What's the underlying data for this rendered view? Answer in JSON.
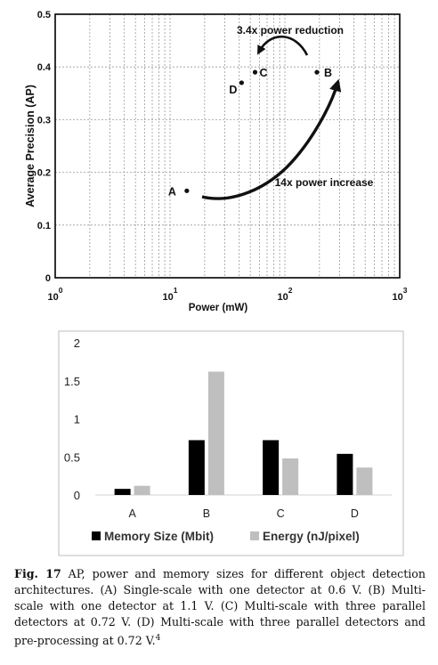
{
  "chart_data": [
    {
      "type": "scatter",
      "xlabel": "Power (mW)",
      "ylabel": "Average Precision (AP)",
      "xscale": "log",
      "xlim": [
        1,
        1000
      ],
      "ylim": [
        0,
        0.5
      ],
      "x_tick_labels": [
        "10^0",
        "10^1",
        "10^2",
        "10^3"
      ],
      "y_tick_labels": [
        "0",
        "0.1",
        "0.2",
        "0.3",
        "0.4",
        "0.5"
      ],
      "y_ticks": [
        0,
        0.1,
        0.2,
        0.3,
        0.4,
        0.5
      ],
      "grid": true,
      "points": [
        {
          "label": "A",
          "x": 14,
          "y": 0.165
        },
        {
          "label": "B",
          "x": 190,
          "y": 0.39
        },
        {
          "label": "C",
          "x": 55,
          "y": 0.39
        },
        {
          "label": "D",
          "x": 42,
          "y": 0.37
        }
      ],
      "annotations": [
        "3.4x power reduction",
        "14x power increase"
      ]
    },
    {
      "type": "bar",
      "categories": [
        "A",
        "B",
        "C",
        "D"
      ],
      "series": [
        {
          "name": "Memory Size (Mbit)",
          "color": "#000000",
          "values": [
            0.08,
            0.72,
            0.72,
            0.54
          ]
        },
        {
          "name": "Energy (nJ/pixel)",
          "color": "#bfbfbf",
          "values": [
            0.12,
            1.62,
            0.48,
            0.36
          ]
        }
      ],
      "ylim": [
        0,
        2
      ],
      "y_tick_labels": [
        "0",
        "0.5",
        "1",
        "1.5",
        "2"
      ],
      "y_ticks": [
        0,
        0.5,
        1,
        1.5,
        2
      ],
      "legend": "bottom",
      "grid": false
    }
  ],
  "caption": {
    "label": "Fig. 17",
    "text": "AP, power and memory sizes for different object detection architectures. (A) Single-scale with one detector at 0.6 V. (B) Multi-scale with one detector at 1.1 V. (C) Multi-scale with three parallel detectors at 0.72 V. (D) Multi-scale with three parallel detectors and pre-processing at 0.72 V.",
    "footnote": "4"
  }
}
